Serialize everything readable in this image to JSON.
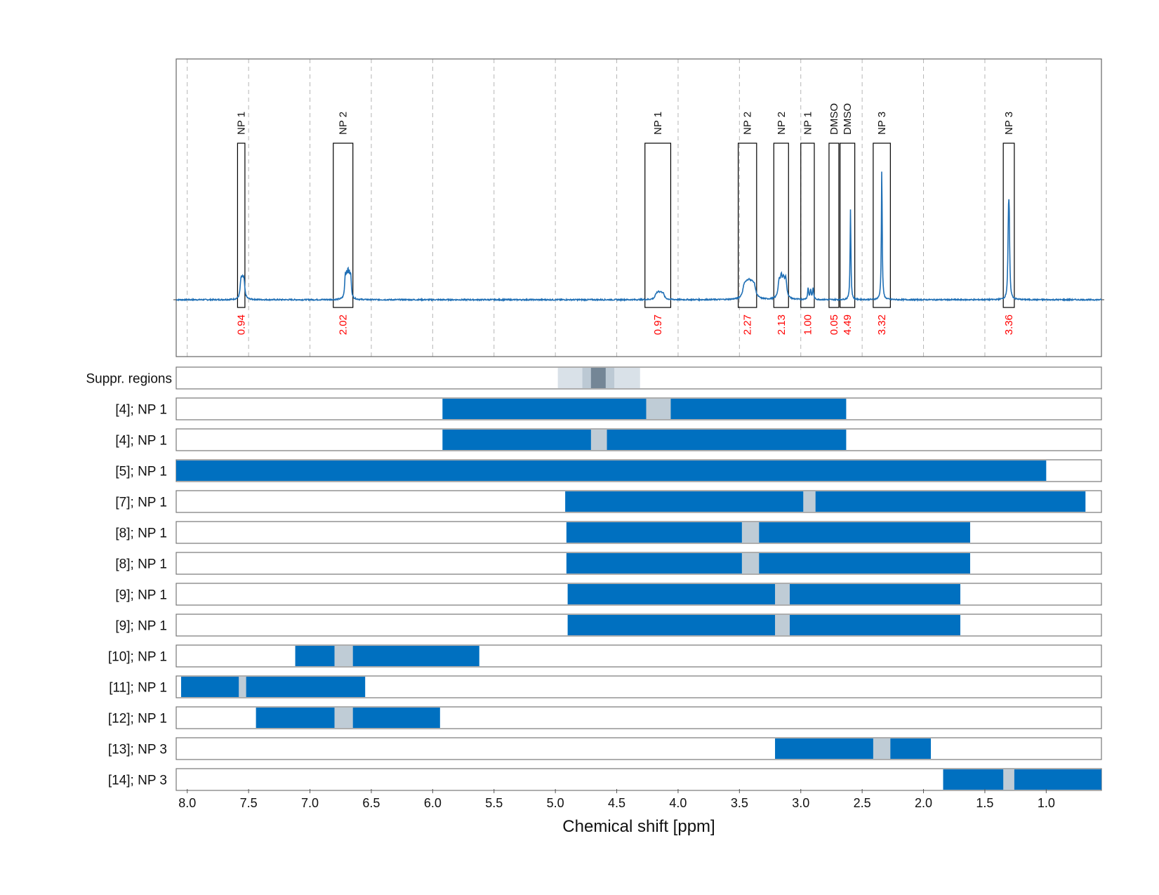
{
  "chart_data": {
    "type": "line",
    "xlabel": "Chemical shift [ppm]",
    "xlim": [
      8.09,
      0.55
    ],
    "x_reversed": true,
    "xticks": [
      {
        "value": 8.0,
        "label": "8.0"
      },
      {
        "value": 7.5,
        "label": "7.5"
      },
      {
        "value": 7.0,
        "label": "7.0"
      },
      {
        "value": 6.5,
        "label": "6.5"
      },
      {
        "value": 6.0,
        "label": "6.0"
      },
      {
        "value": 5.5,
        "label": "5.5"
      },
      {
        "value": 5.0,
        "label": "5.0"
      },
      {
        "value": 4.5,
        "label": "4.5"
      },
      {
        "value": 4.0,
        "label": "4.0"
      },
      {
        "value": 3.5,
        "label": "3.5"
      },
      {
        "value": 3.0,
        "label": "3.0"
      },
      {
        "value": 2.5,
        "label": "2.5"
      },
      {
        "value": 2.0,
        "label": "2.0"
      },
      {
        "value": 1.5,
        "label": "1.5"
      },
      {
        "value": 1.0,
        "label": "1.0"
      }
    ],
    "grid": "vertical dashed",
    "colors": {
      "spectrum": "#1f6fb5",
      "integral_text": "#ff0000",
      "bar": "#0070c0",
      "gap": "#bfccd6",
      "suppr_light": "#d9e1e8",
      "suppr_mid": "#bcc9d4",
      "suppr_dark": "#748696"
    },
    "spectrum_peaks": [
      {
        "ppm": 7.55,
        "height": 0.11,
        "width": 0.008,
        "n": 3,
        "spacing": 0.012
      },
      {
        "ppm": 6.69,
        "height": 0.14,
        "width": 0.006,
        "n": 5,
        "spacing": 0.011
      },
      {
        "ppm": 4.15,
        "height": 0.035,
        "width": 0.012,
        "n": 4,
        "spacing": 0.018
      },
      {
        "ppm": 3.42,
        "height": 0.075,
        "width": 0.015,
        "n": 5,
        "spacing": 0.02
      },
      {
        "ppm": 3.15,
        "height": 0.12,
        "width": 0.01,
        "n": 4,
        "spacing": 0.018
      },
      {
        "ppm": 2.92,
        "height": 0.075,
        "width": 0.005,
        "n": 3,
        "spacing": 0.02
      },
      {
        "ppm": 2.595,
        "height": 0.6,
        "width": 0.004,
        "n": 1,
        "spacing": 0
      },
      {
        "ppm": 2.34,
        "height": 0.88,
        "width": 0.004,
        "n": 1,
        "spacing": 0
      },
      {
        "ppm": 1.305,
        "height": 0.48,
        "width": 0.005,
        "n": 2,
        "spacing": 0.006
      }
    ],
    "integration_regions": [
      {
        "label": "NP 1",
        "from": 7.59,
        "to": 7.53,
        "integral": "0.94"
      },
      {
        "label": "NP 2",
        "from": 6.81,
        "to": 6.65,
        "integral": "2.02"
      },
      {
        "label": "NP 1",
        "from": 4.27,
        "to": 4.06,
        "integral": "0.97"
      },
      {
        "label": "NP 2",
        "from": 3.51,
        "to": 3.36,
        "integral": "2.27"
      },
      {
        "label": "NP 2",
        "from": 3.22,
        "to": 3.1,
        "integral": "2.13"
      },
      {
        "label": "NP 1",
        "from": 3.0,
        "to": 2.89,
        "integral": "1.00"
      },
      {
        "label": "DMSO",
        "from": 2.77,
        "to": 2.69,
        "integral": "0.05"
      },
      {
        "label": "DMSO",
        "from": 2.68,
        "to": 2.56,
        "integral": "4.49"
      },
      {
        "label": "NP 3",
        "from": 2.41,
        "to": 2.27,
        "integral": "3.32"
      },
      {
        "label": "NP 3",
        "from": 1.35,
        "to": 1.26,
        "integral": "3.36"
      }
    ],
    "suppression": {
      "label": "Suppr. regions",
      "bands": [
        {
          "from": 4.98,
          "to": 4.31,
          "level": "light"
        },
        {
          "from": 4.78,
          "to": 4.52,
          "level": "mid"
        },
        {
          "from": 4.71,
          "to": 4.59,
          "level": "dark"
        }
      ]
    },
    "ranges": [
      {
        "label": "[4]; NP 1",
        "from": 5.92,
        "to": 2.63,
        "gap_from": 4.26,
        "gap_to": 4.06
      },
      {
        "label": "[4]; NP 1",
        "from": 5.92,
        "to": 2.63,
        "gap_from": 4.71,
        "gap_to": 4.58
      },
      {
        "label": "[5]; NP 1",
        "from": 8.09,
        "to": 1.0,
        "gap_from": null,
        "gap_to": null
      },
      {
        "label": "[7]; NP 1",
        "from": 4.92,
        "to": 0.68,
        "gap_from": 2.98,
        "gap_to": 2.88
      },
      {
        "label": "[8]; NP 1",
        "from": 4.91,
        "to": 1.62,
        "gap_from": 3.48,
        "gap_to": 3.34
      },
      {
        "label": "[8]; NP 1",
        "from": 4.91,
        "to": 1.62,
        "gap_from": 3.48,
        "gap_to": 3.34
      },
      {
        "label": "[9]; NP 1",
        "from": 4.9,
        "to": 1.7,
        "gap_from": 3.21,
        "gap_to": 3.09
      },
      {
        "label": "[9]; NP 1",
        "from": 4.9,
        "to": 1.7,
        "gap_from": 3.21,
        "gap_to": 3.09
      },
      {
        "label": "[10]; NP 1",
        "from": 7.12,
        "to": 5.62,
        "gap_from": 6.8,
        "gap_to": 6.65
      },
      {
        "label": "[11]; NP 1",
        "from": 8.05,
        "to": 6.55,
        "gap_from": 7.58,
        "gap_to": 7.52
      },
      {
        "label": "[12]; NP 1",
        "from": 7.44,
        "to": 5.94,
        "gap_from": 6.8,
        "gap_to": 6.65
      },
      {
        "label": "[13]; NP 3",
        "from": 3.21,
        "to": 1.94,
        "gap_from": 2.41,
        "gap_to": 2.27
      },
      {
        "label": "[14]; NP 3",
        "from": 1.84,
        "to": 0.55,
        "gap_from": 1.35,
        "gap_to": 1.26
      }
    ]
  }
}
